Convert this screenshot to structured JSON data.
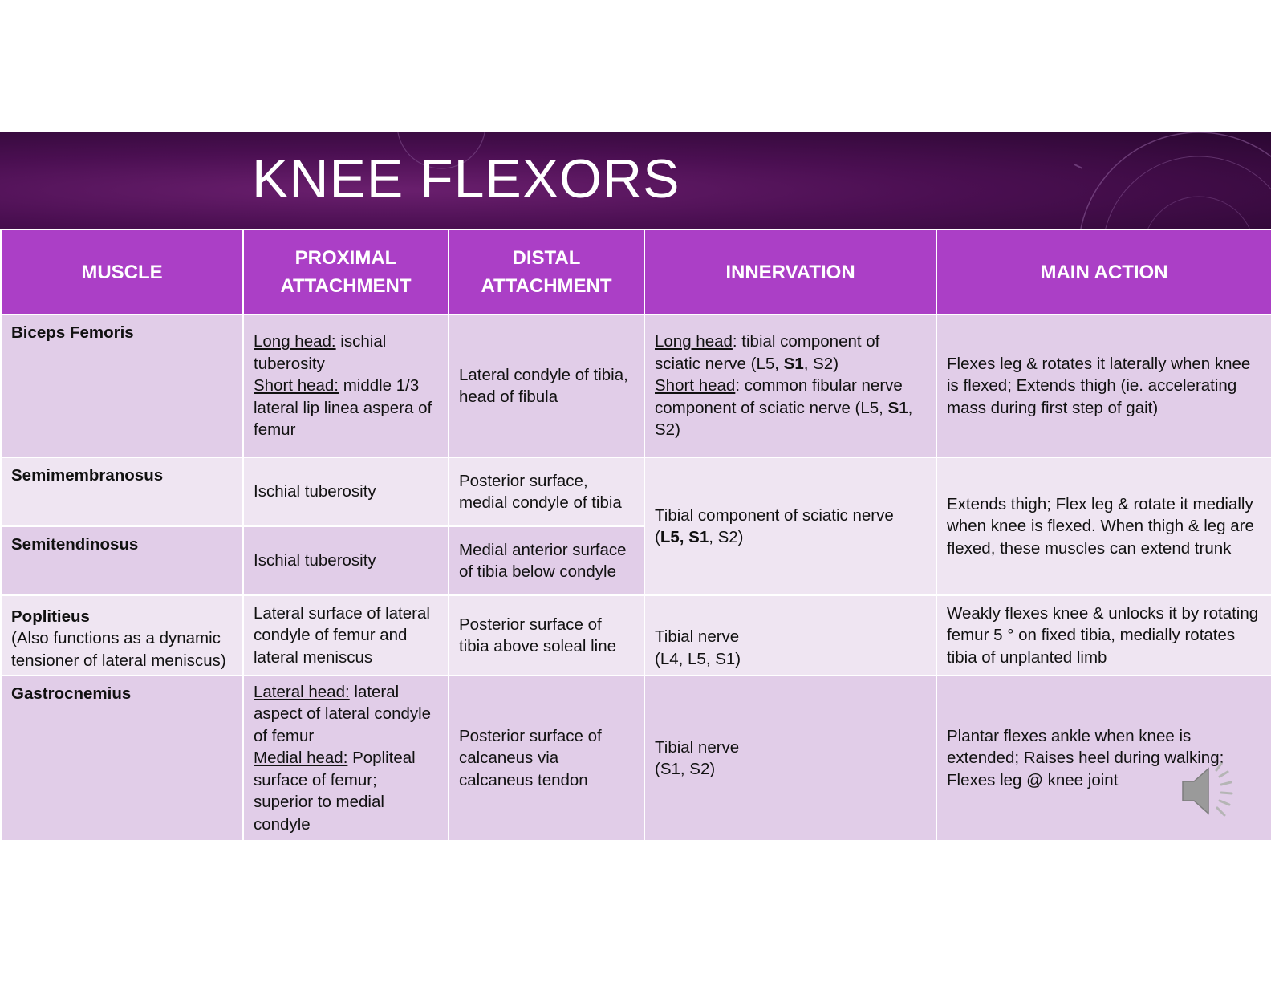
{
  "title": "KNEE FLEXORS",
  "headers": {
    "muscle": "MUSCLE",
    "proximal_1": "PROXIMAL",
    "proximal_2": "ATTACHMENT",
    "distal_1": "DISTAL",
    "distal_2": "ATTACHMENT",
    "innervation": "INNERVATION",
    "action": "MAIN ACTION"
  },
  "biceps": {
    "name": "Biceps Femoris",
    "prox_long_label": "Long head:",
    "prox_long_text": " ischial tuberosity",
    "prox_short_label": "Short head:",
    "prox_short_text": " middle 1/3 lateral lip linea aspera of femur",
    "distal": "Lateral condyle of tibia, head of fibula",
    "inn_long_label": "Long head",
    "inn_long_text": ":  tibial component of sciatic nerve (L5, ",
    "inn_long_bold": "S1",
    "inn_long_end": ", S2)",
    "inn_short_label": "Short head",
    "inn_short_text": ":  common fibular nerve component of sciatic nerve (L5, ",
    "inn_short_bold": "S1",
    "inn_short_end": ", S2)",
    "action": "Flexes leg & rotates it laterally when knee is flexed; Extends thigh (ie. accelerating mass during first step of gait)"
  },
  "semimembranosus": {
    "name": "Semimembranosus",
    "proximal": "Ischial tuberosity",
    "distal": "Posterior surface, medial condyle of tibia"
  },
  "semitendinosus": {
    "name": "Semitendinosus",
    "proximal": "Ischial tuberosity",
    "distal": "Medial anterior surface of tibia below condyle"
  },
  "semi_shared": {
    "inn_text": "Tibial component of sciatic nerve",
    "inn_open": "(",
    "inn_bold": "L5, S1",
    "inn_close": ", S2)",
    "action": "Extends thigh; Flex leg & rotate it medially when knee is flexed.  When thigh & leg are flexed, these muscles can extend trunk"
  },
  "popliteus": {
    "name": "Poplitieus",
    "note": "(Also functions as a dynamic tensioner of lateral meniscus)",
    "proximal": "Lateral surface of lateral condyle of femur and lateral meniscus",
    "distal": "Posterior surface of tibia above soleal line",
    "inn_1": "Tibial nerve",
    "inn_2": "(L4, L5, S1)",
    "action": "Weakly flexes knee & unlocks it by rotating femur 5 ° on fixed tibia, medially rotates tibia of unplanted limb"
  },
  "gastrocnemius": {
    "name": "Gastrocnemius",
    "prox_lat_label": "Lateral head:",
    "prox_lat_text": "  lateral aspect of lateral condyle of femur",
    "prox_med_label": "Medial head:",
    "prox_med_text": "  Popliteal surface of femur; superior to medial condyle",
    "distal": "Posterior surface of calcaneus via calcaneus tendon",
    "inn_1": "Tibial nerve",
    "inn_2": "(S1, S2)",
    "action": "Plantar flexes ankle when knee is extended; Raises heel during walking; Flexes leg @ knee joint"
  },
  "icons": {
    "audio": "speaker-icon"
  },
  "colors": {
    "header": "#ab3fc6",
    "row_dark": "#e1cde8",
    "row_light": "#efe5f2",
    "banner": "#4b0f52"
  }
}
